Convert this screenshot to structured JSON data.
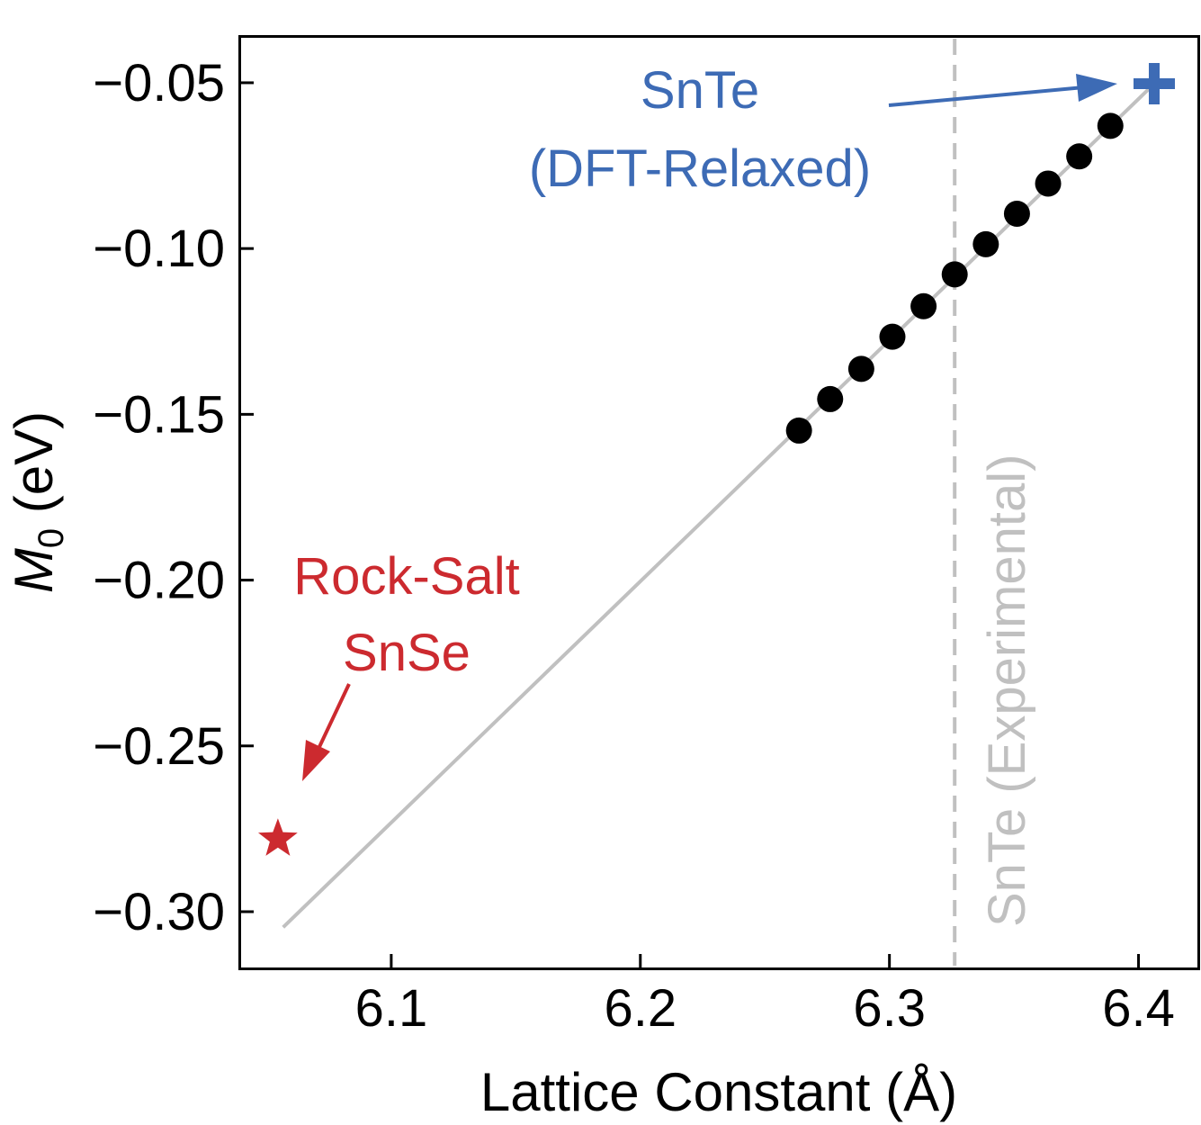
{
  "chart_data": {
    "type": "scatter",
    "title": "",
    "xlabel": "Lattice Constant (Å)",
    "ylabel_symbol": "M",
    "ylabel_subscript": "0",
    "ylabel_unit": " (eV)",
    "xlim": [
      6.039,
      6.424
    ],
    "ylim": [
      -0.3171,
      -0.0359
    ],
    "xticks": [
      6.1,
      6.2,
      6.3,
      6.4
    ],
    "xtick_labels": [
      "6.1",
      "6.2",
      "6.3",
      "6.4"
    ],
    "yticks": [
      -0.05,
      -0.1,
      -0.15,
      -0.2,
      -0.25,
      -0.3
    ],
    "ytick_labels": [
      "−0.05",
      "−0.10",
      "−0.15",
      "−0.20",
      "−0.25",
      "−0.30"
    ],
    "grid": false,
    "series": [
      {
        "name": "scan",
        "marker": "circle",
        "color": "#000000",
        "x": [
          6.2637,
          6.2762,
          6.2887,
          6.3012,
          6.3137,
          6.3262,
          6.3387,
          6.3512,
          6.3637,
          6.3762,
          6.3887
        ],
        "y": [
          -0.1549,
          -0.1454,
          -0.1363,
          -0.1266,
          -0.1174,
          -0.1078,
          -0.0987,
          -0.0895,
          -0.0804,
          -0.0722,
          -0.063
        ]
      }
    ],
    "fit_line": {
      "name": "linear fit",
      "color": "#c0c0c0",
      "x": [
        6.0566,
        6.4063
      ],
      "y": [
        -0.3047,
        -0.0503
      ]
    },
    "reference_line": {
      "orientation": "vertical",
      "x": 6.3262,
      "color": "#c0c0c0",
      "style": "dashed",
      "label": "SnTe (Experimental)"
    },
    "special_points": [
      {
        "name": "snte-dft-relaxed",
        "marker": "plus",
        "color": "#3d6bb5",
        "x": 6.4063,
        "y": -0.0503,
        "label_lines": [
          "SnTe",
          "(DFT-Relaxed)"
        ]
      },
      {
        "name": "rock-salt-snse",
        "marker": "star",
        "color": "#cc2a2f",
        "x": 6.0545,
        "y": -0.2781,
        "label_lines": [
          "Rock-Salt",
          "SnSe"
        ]
      }
    ]
  }
}
